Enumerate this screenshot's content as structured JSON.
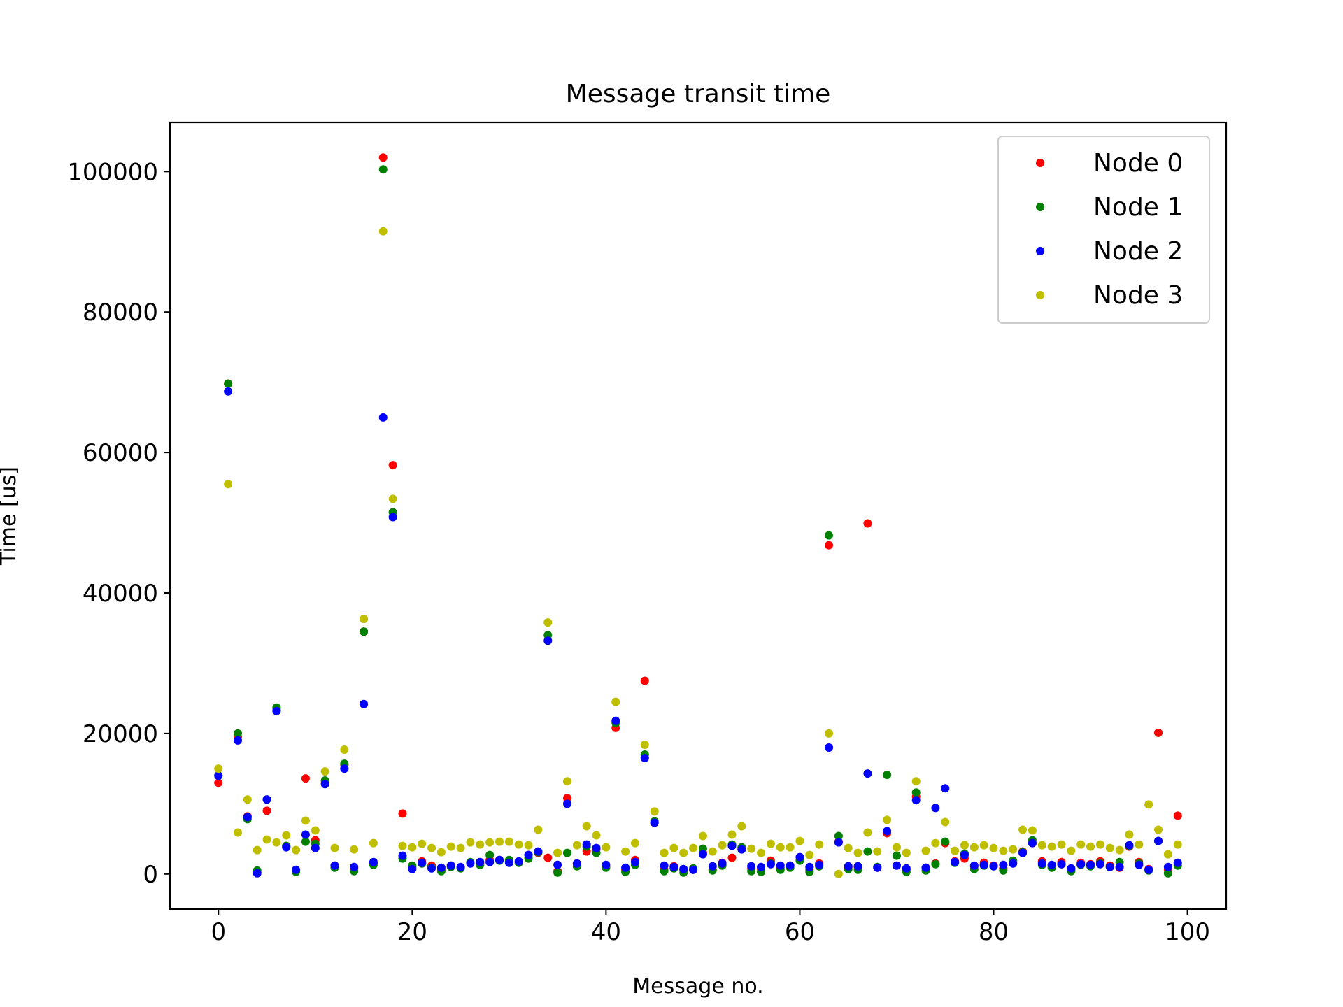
{
  "chart_data": {
    "type": "scatter",
    "title": "Message transit time",
    "xlabel": "Message no.",
    "ylabel": "Time [us]",
    "xlim": [
      -5,
      104
    ],
    "ylim": [
      -5000,
      107000
    ],
    "xticks": [
      0,
      20,
      40,
      60,
      80,
      100
    ],
    "yticks": [
      0,
      20000,
      40000,
      60000,
      80000,
      100000
    ],
    "grid": false,
    "legend_position": "top-right",
    "series": [
      {
        "name": "Node 0",
        "color": "#ff0000",
        "values": [
          13000,
          69800,
          19500,
          8200,
          200,
          9000,
          23500,
          4000,
          400,
          13600,
          4800,
          13000,
          1200,
          15500,
          800,
          34500,
          1500,
          102000,
          58200,
          8600,
          1000,
          1800,
          1200,
          600,
          1200,
          900,
          1600,
          1500,
          2000,
          2000,
          1800,
          1700,
          2700,
          3000,
          2300,
          400,
          10800,
          1500,
          3200,
          3500,
          1000,
          20800,
          600,
          2000,
          27500,
          7300,
          600,
          1100,
          600,
          600,
          3000,
          600,
          1600,
          2300,
          3600,
          800,
          700,
          1900,
          800,
          1200,
          2000,
          600,
          1500,
          46800,
          4600,
          1000,
          1000,
          49900,
          900,
          5800,
          1200,
          600,
          11000,
          900,
          1500,
          4400,
          1800,
          2200,
          1100,
          1600,
          1200,
          800,
          1600,
          3200,
          4400,
          1800,
          1200,
          1700,
          600,
          1600,
          1400,
          1800,
          1200,
          900,
          3900,
          1700,
          700,
          20100,
          600,
          8300
        ]
      },
      {
        "name": "Node 1",
        "color": "#008000",
        "values": [
          14000,
          69800,
          20000,
          7800,
          500,
          10600,
          23700,
          4000,
          300,
          4600,
          4300,
          13300,
          900,
          15700,
          400,
          34500,
          1300,
          100300,
          51500,
          2200,
          1200,
          1500,
          900,
          400,
          1000,
          800,
          1700,
          1300,
          2700,
          1900,
          2000,
          1600,
          2200,
          3100,
          34000,
          200,
          3000,
          1100,
          3900,
          3000,
          900,
          21500,
          300,
          1300,
          17000,
          7500,
          400,
          800,
          200,
          800,
          3600,
          500,
          1200,
          4200,
          3800,
          400,
          300,
          1500,
          600,
          900,
          1900,
          300,
          1100,
          48200,
          5400,
          700,
          600,
          3200,
          1000,
          14100,
          2600,
          300,
          11600,
          500,
          1400,
          4600,
          1600,
          2900,
          700,
          1200,
          1100,
          500,
          1900,
          3100,
          4800,
          1300,
          900,
          1400,
          400,
          1300,
          1100,
          1500,
          1000,
          1700,
          4000,
          1500,
          500,
          4700,
          100,
          1200
        ]
      },
      {
        "name": "Node 2",
        "color": "#0000ff",
        "values": [
          14000,
          68700,
          19000,
          8100,
          100,
          10600,
          23200,
          3800,
          600,
          5600,
          3700,
          12800,
          1200,
          15000,
          1000,
          24200,
          1700,
          65000,
          50800,
          2600,
          700,
          1600,
          800,
          900,
          1200,
          1000,
          1500,
          1700,
          1700,
          2000,
          1600,
          1800,
          2700,
          3200,
          33200,
          1300,
          10000,
          1500,
          4200,
          3700,
          1300,
          21800,
          900,
          1700,
          16500,
          7300,
          1200,
          1000,
          700,
          600,
          2800,
          1100,
          1500,
          4000,
          3500,
          1100,
          1000,
          1400,
          1200,
          1200,
          2400,
          1000,
          1300,
          18000,
          4500,
          1100,
          1100,
          14300,
          900,
          6100,
          1200,
          800,
          10500,
          900,
          9400,
          12200,
          1700,
          2700,
          1200,
          1300,
          1100,
          1300,
          1500,
          3000,
          4400,
          1500,
          1300,
          1400,
          800,
          1400,
          1300,
          1400,
          1000,
          1000,
          4100,
          1300,
          600,
          4700,
          1000,
          1600
        ]
      },
      {
        "name": "Node 3",
        "color": "#bfbf00",
        "values": [
          15000,
          55500,
          5900,
          10600,
          3400,
          4900,
          4500,
          5500,
          3400,
          7600,
          6200,
          14600,
          3700,
          17700,
          3500,
          36300,
          4400,
          91500,
          53400,
          4000,
          3800,
          4300,
          3700,
          3100,
          3900,
          3700,
          4500,
          4200,
          4500,
          4600,
          4600,
          4200,
          4100,
          6300,
          35800,
          3000,
          13200,
          4100,
          6800,
          5500,
          3800,
          24500,
          3200,
          4400,
          18400,
          8900,
          3000,
          3700,
          3000,
          3700,
          5400,
          3200,
          4100,
          5600,
          6800,
          3600,
          3000,
          4300,
          3800,
          3800,
          4700,
          2700,
          4200,
          20000,
          0,
          3700,
          3000,
          5900,
          3200,
          7700,
          3800,
          3000,
          13200,
          3300,
          4400,
          7400,
          3300,
          4100,
          3800,
          4100,
          3700,
          3300,
          3500,
          6300,
          6200,
          4100,
          3900,
          4200,
          3300,
          4200,
          3900,
          4200,
          3700,
          3400,
          5600,
          4200,
          9900,
          6300,
          2800,
          4200
        ]
      }
    ]
  }
}
